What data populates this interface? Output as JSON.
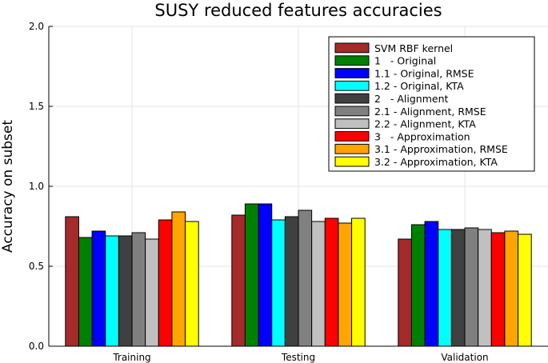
{
  "chart_data": {
    "type": "bar",
    "title": "SUSY reduced features accuracies",
    "xlabel": "",
    "ylabel": "Accuracy on subset",
    "ylim": [
      0,
      2.0
    ],
    "yticks": [
      "0.0",
      "0.5",
      "1.0",
      "1.5",
      "2.0"
    ],
    "grid": true,
    "legend_position": "top-right",
    "categories": [
      "Training",
      "Testing",
      "Validation"
    ],
    "series": [
      {
        "name": "SVM RBF kernel",
        "color": "#a52a2a",
        "values": [
          0.81,
          0.82,
          0.67
        ]
      },
      {
        "name": "1   - Original",
        "color": "#008000",
        "values": [
          0.68,
          0.89,
          0.76
        ]
      },
      {
        "name": "1.1 - Original, RMSE",
        "color": "#0000ff",
        "values": [
          0.72,
          0.89,
          0.78
        ]
      },
      {
        "name": "1.2 - Original, KTA",
        "color": "#00ffff",
        "values": [
          0.69,
          0.79,
          0.73
        ]
      },
      {
        "name": "2   - Alignment",
        "color": "#404040",
        "values": [
          0.69,
          0.81,
          0.73
        ]
      },
      {
        "name": "2.1 - Alignment, RMSE",
        "color": "#808080",
        "values": [
          0.71,
          0.85,
          0.74
        ]
      },
      {
        "name": "2.2 - Alignment, KTA",
        "color": "#c0c0c0",
        "values": [
          0.67,
          0.78,
          0.73
        ]
      },
      {
        "name": "3   - Approximation",
        "color": "#ff0000",
        "values": [
          0.79,
          0.8,
          0.71
        ]
      },
      {
        "name": "3.1 - Approximation, RMSE",
        "color": "#ffa500",
        "values": [
          0.84,
          0.77,
          0.72
        ]
      },
      {
        "name": "3.2 - Approximation, KTA",
        "color": "#ffff00",
        "values": [
          0.78,
          0.8,
          0.7
        ]
      }
    ]
  }
}
